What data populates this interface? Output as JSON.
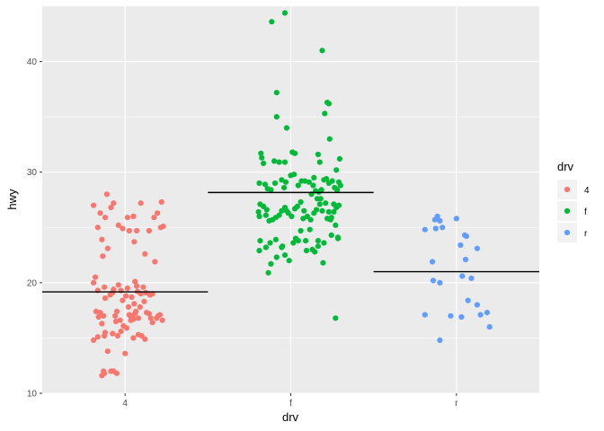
{
  "chart_data": {
    "type": "scatter",
    "subtype": "jitter-with-mean-lines",
    "title": "",
    "xlabel": "drv",
    "ylabel": "hwy",
    "categories": [
      "4",
      "f",
      "r"
    ],
    "ylim": [
      10,
      45
    ],
    "yticks": [
      10,
      20,
      30,
      40
    ],
    "grid": true,
    "legend": {
      "title": "drv",
      "position": "right"
    },
    "series": [
      {
        "name": "4",
        "color": "#F8766D",
        "mean": 19.17,
        "points": [
          [
            -0.38,
            27.0
          ],
          [
            -0.33,
            25.0
          ],
          [
            -0.3,
            26.3
          ],
          [
            -0.22,
            28.0
          ],
          [
            -0.17,
            26.8
          ],
          [
            -0.14,
            27.2
          ],
          [
            -0.24,
            25.9
          ],
          [
            -0.08,
            25.2
          ],
          [
            0.03,
            25.9
          ],
          [
            0.1,
            26.0
          ],
          [
            0.19,
            27.2
          ],
          [
            -0.03,
            24.9
          ],
          [
            0.05,
            24.7
          ],
          [
            0.14,
            24.7
          ],
          [
            0.29,
            24.7
          ],
          [
            0.35,
            25.9
          ],
          [
            0.39,
            26.3
          ],
          [
            0.44,
            27.3
          ],
          [
            0.46,
            25.1
          ],
          [
            0.43,
            25.0
          ],
          [
            0.11,
            23.7
          ],
          [
            -0.28,
            23.9
          ],
          [
            -0.27,
            22.4
          ],
          [
            -0.21,
            23.1
          ],
          [
            0.24,
            22.6
          ],
          [
            0.36,
            21.9
          ],
          [
            -0.36,
            20.5
          ],
          [
            -0.38,
            20.0
          ],
          [
            -0.33,
            19.3
          ],
          [
            -0.25,
            19.6
          ],
          [
            -0.24,
            18.6
          ],
          [
            -0.35,
            17.4
          ],
          [
            -0.32,
            16.9
          ],
          [
            -0.3,
            17.3
          ],
          [
            -0.28,
            16.3
          ],
          [
            -0.26,
            17.0
          ],
          [
            -0.38,
            14.8
          ],
          [
            -0.33,
            15.1
          ],
          [
            -0.25,
            15.2
          ],
          [
            -0.24,
            15.5
          ],
          [
            -0.1,
            17.4
          ],
          [
            -0.06,
            16.6
          ],
          [
            -0.12,
            17.0
          ],
          [
            -0.02,
            16.1
          ],
          [
            0.02,
            15.9
          ],
          [
            0.07,
            16.6
          ],
          [
            0.09,
            17.0
          ],
          [
            0.11,
            18.1
          ],
          [
            0.13,
            17.4
          ],
          [
            0.16,
            16.8
          ],
          [
            0.18,
            17.8
          ],
          [
            0.23,
            18.3
          ],
          [
            0.26,
            17.3
          ],
          [
            0.29,
            17.2
          ],
          [
            0.31,
            16.8
          ],
          [
            0.33,
            16.4
          ],
          [
            0.38,
            16.8
          ],
          [
            0.4,
            17.0
          ],
          [
            0.42,
            17.1
          ],
          [
            0.45,
            16.6
          ],
          [
            -0.05,
            19.3
          ],
          [
            0.03,
            19.5
          ],
          [
            0.08,
            18.7
          ],
          [
            0.14,
            19.7
          ],
          [
            0.19,
            19.0
          ],
          [
            0.22,
            19.6
          ],
          [
            0.25,
            19.1
          ],
          [
            0.3,
            18.9
          ],
          [
            0.12,
            20.1
          ],
          [
            0.15,
            19.2
          ],
          [
            -0.14,
            19.4
          ],
          [
            -0.18,
            18.9
          ],
          [
            -0.11,
            16.5
          ],
          [
            -0.15,
            15.4
          ],
          [
            -0.09,
            15.2
          ],
          [
            -0.05,
            15.6
          ],
          [
            0.0,
            13.6
          ],
          [
            0.1,
            15.0
          ],
          [
            0.16,
            15.3
          ],
          [
            0.2,
            15.2
          ],
          [
            0.24,
            14.9
          ],
          [
            0.07,
            16.9
          ],
          [
            0.1,
            16.7
          ],
          [
            0.12,
            17.2
          ],
          [
            0.05,
            17.1
          ],
          [
            -0.03,
            18.4
          ],
          [
            0.01,
            18.8
          ],
          [
            0.04,
            17.8
          ],
          [
            -0.08,
            19.8
          ],
          [
            -0.15,
            19.1
          ],
          [
            0.33,
            19.0
          ],
          [
            -0.21,
            13.8
          ],
          [
            -0.17,
            12.0
          ],
          [
            -0.26,
            12.0
          ],
          [
            -0.28,
            11.6
          ],
          [
            -0.25,
            11.8
          ],
          [
            -0.14,
            12.0
          ],
          [
            -0.1,
            11.8
          ]
        ]
      },
      {
        "name": "f",
        "color": "#00BA38",
        "mean": 28.16,
        "points": [
          [
            -0.23,
            43.6
          ],
          [
            -0.07,
            44.4
          ],
          [
            0.38,
            41.0
          ],
          [
            -0.17,
            37.2
          ],
          [
            -0.05,
            34.0
          ],
          [
            0.44,
            36.3
          ],
          [
            0.46,
            36.2
          ],
          [
            0.41,
            35.3
          ],
          [
            -0.17,
            35.0
          ],
          [
            0.47,
            33.0
          ],
          [
            -0.2,
            31.0
          ],
          [
            -0.14,
            30.9
          ],
          [
            -0.07,
            30.9
          ],
          [
            0.02,
            31.8
          ],
          [
            0.05,
            31.7
          ],
          [
            0.33,
            31.6
          ],
          [
            0.35,
            30.9
          ],
          [
            0.59,
            31.2
          ],
          [
            -0.36,
            31.7
          ],
          [
            -0.35,
            31.3
          ],
          [
            -0.33,
            30.8
          ],
          [
            -0.38,
            29.0
          ],
          [
            -0.31,
            28.9
          ],
          [
            -0.28,
            28.5
          ],
          [
            -0.24,
            28.4
          ],
          [
            -0.19,
            29.0
          ],
          [
            -0.11,
            29.3
          ],
          [
            -0.08,
            28.6
          ],
          [
            -0.06,
            29.1
          ],
          [
            0.0,
            29.7
          ],
          [
            0.04,
            29.8
          ],
          [
            0.09,
            28.8
          ],
          [
            0.13,
            29.2
          ],
          [
            0.17,
            29.2
          ],
          [
            0.22,
            29.1
          ],
          [
            0.27,
            28.8
          ],
          [
            0.3,
            28.3
          ],
          [
            0.34,
            28.2
          ],
          [
            0.4,
            29.3
          ],
          [
            0.43,
            29.4
          ],
          [
            0.46,
            29.0
          ],
          [
            0.5,
            29.2
          ],
          [
            0.53,
            28.6
          ],
          [
            0.56,
            28.4
          ],
          [
            0.58,
            29.1
          ],
          [
            0.6,
            28.8
          ],
          [
            -0.37,
            27.1
          ],
          [
            -0.33,
            26.9
          ],
          [
            -0.29,
            26.6
          ],
          [
            -0.26,
            25.6
          ],
          [
            -0.22,
            25.7
          ],
          [
            -0.18,
            25.9
          ],
          [
            -0.14,
            26.1
          ],
          [
            -0.11,
            26.5
          ],
          [
            -0.07,
            26.8
          ],
          [
            -0.03,
            26.3
          ],
          [
            0.01,
            26.0
          ],
          [
            0.05,
            26.7
          ],
          [
            0.08,
            26.9
          ],
          [
            0.12,
            27.3
          ],
          [
            0.16,
            26.5
          ],
          [
            0.2,
            26.0
          ],
          [
            0.24,
            25.7
          ],
          [
            0.28,
            26.3
          ],
          [
            0.31,
            26.6
          ],
          [
            0.35,
            27.1
          ],
          [
            0.38,
            26.5
          ],
          [
            0.42,
            27.2
          ],
          [
            0.46,
            26.4
          ],
          [
            0.49,
            25.9
          ],
          [
            0.52,
            26.4
          ],
          [
            0.55,
            26.8
          ],
          [
            0.58,
            27.0
          ],
          [
            -0.39,
            26.4
          ],
          [
            -0.38,
            26.0
          ],
          [
            -0.3,
            26.1
          ],
          [
            -0.05,
            26.5
          ],
          [
            0.15,
            25.8
          ],
          [
            0.44,
            25.8
          ],
          [
            0.57,
            24.1
          ],
          [
            -0.37,
            23.8
          ],
          [
            -0.3,
            23.2
          ],
          [
            -0.25,
            23.6
          ],
          [
            -0.18,
            23.9
          ],
          [
            -0.1,
            23.3
          ],
          [
            0.03,
            23.6
          ],
          [
            0.09,
            23.8
          ],
          [
            0.18,
            23.8
          ],
          [
            0.26,
            23.0
          ],
          [
            0.33,
            23.8
          ],
          [
            0.4,
            23.6
          ],
          [
            0.49,
            24.3
          ],
          [
            0.57,
            24.0
          ],
          [
            0.23,
            24.8
          ],
          [
            -0.38,
            22.9
          ],
          [
            -0.27,
            20.9
          ],
          [
            -0.24,
            21.7
          ],
          [
            -0.17,
            22.3
          ],
          [
            -0.11,
            23.2
          ],
          [
            -0.07,
            22.5
          ],
          [
            -0.02,
            22.0
          ],
          [
            0.06,
            24.0
          ],
          [
            0.12,
            24.7
          ],
          [
            0.19,
            22.9
          ],
          [
            0.29,
            22.8
          ],
          [
            0.33,
            23.3
          ],
          [
            0.39,
            21.8
          ],
          [
            0.48,
            25.7
          ],
          [
            0.54,
            25.2
          ],
          [
            0.37,
            28.4
          ],
          [
            0.28,
            29.5
          ],
          [
            0.25,
            28.0
          ],
          [
            0.32,
            27.6
          ],
          [
            0.55,
            30.2
          ],
          [
            0.36,
            27.6
          ],
          [
            0.52,
            27.1
          ],
          [
            0.54,
            16.8
          ]
        ]
      },
      {
        "name": "r",
        "color": "#619CFF",
        "mean": 21.0,
        "points": [
          [
            -0.38,
            24.8
          ],
          [
            -0.26,
            25.7
          ],
          [
            -0.23,
            26.0
          ],
          [
            -0.2,
            25.6
          ],
          [
            -0.17,
            25.0
          ],
          [
            -0.25,
            24.9
          ],
          [
            0.0,
            25.8
          ],
          [
            0.1,
            24.3
          ],
          [
            0.12,
            24.2
          ],
          [
            0.05,
            23.4
          ],
          [
            0.25,
            23.1
          ],
          [
            -0.29,
            21.9
          ],
          [
            0.11,
            22.1
          ],
          [
            0.07,
            20.6
          ],
          [
            0.18,
            20.4
          ],
          [
            -0.28,
            20.2
          ],
          [
            -0.2,
            20.0
          ],
          [
            0.25,
            18.0
          ],
          [
            0.29,
            17.1
          ],
          [
            0.37,
            17.3
          ],
          [
            0.4,
            16.0
          ],
          [
            -0.38,
            17.1
          ],
          [
            -0.07,
            17.0
          ],
          [
            0.06,
            16.9
          ],
          [
            -0.2,
            14.8
          ],
          [
            0.14,
            18.4
          ]
        ]
      }
    ]
  }
}
